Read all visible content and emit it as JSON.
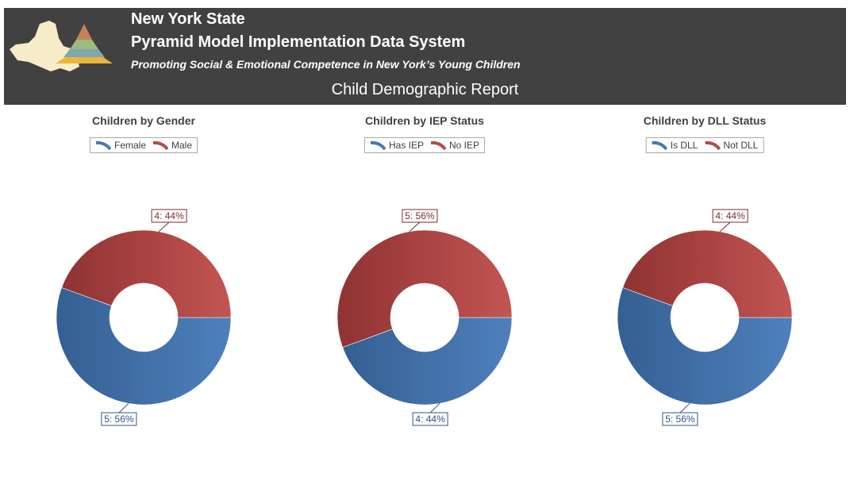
{
  "header": {
    "state": "New York State",
    "system": "Pyramid Model Implementation Data System",
    "tagline": "Promoting Social & Emotional Competence in New York’s Young Children",
    "report_title": "Child Demographic Report"
  },
  "colors": {
    "banner": "#414141",
    "blue": "#4a77b4",
    "red": "#b5494a"
  },
  "chart_data": [
    {
      "type": "pie",
      "title": "Children by Gender",
      "legend_placement": "top-center",
      "slices": [
        {
          "name": "Female",
          "value": 5,
          "label": "5: 56%",
          "color": "blue"
        },
        {
          "name": "Male",
          "value": 4,
          "label": "4: 44%",
          "color": "red"
        }
      ]
    },
    {
      "type": "pie",
      "title": "Children by IEP Status",
      "legend_placement": "top-center",
      "slices": [
        {
          "name": "Has IEP",
          "value": 4,
          "label": "4: 44%",
          "color": "blue"
        },
        {
          "name": "No IEP",
          "value": 5,
          "label": "5: 56%",
          "color": "red"
        }
      ]
    },
    {
      "type": "pie",
      "title": "Children by DLL Status",
      "legend_placement": "top-center",
      "slices": [
        {
          "name": "Is DLL",
          "value": 5,
          "label": "5: 56%",
          "color": "blue"
        },
        {
          "name": "Not DLL",
          "value": 4,
          "label": "4: 44%",
          "color": "red"
        }
      ]
    }
  ]
}
